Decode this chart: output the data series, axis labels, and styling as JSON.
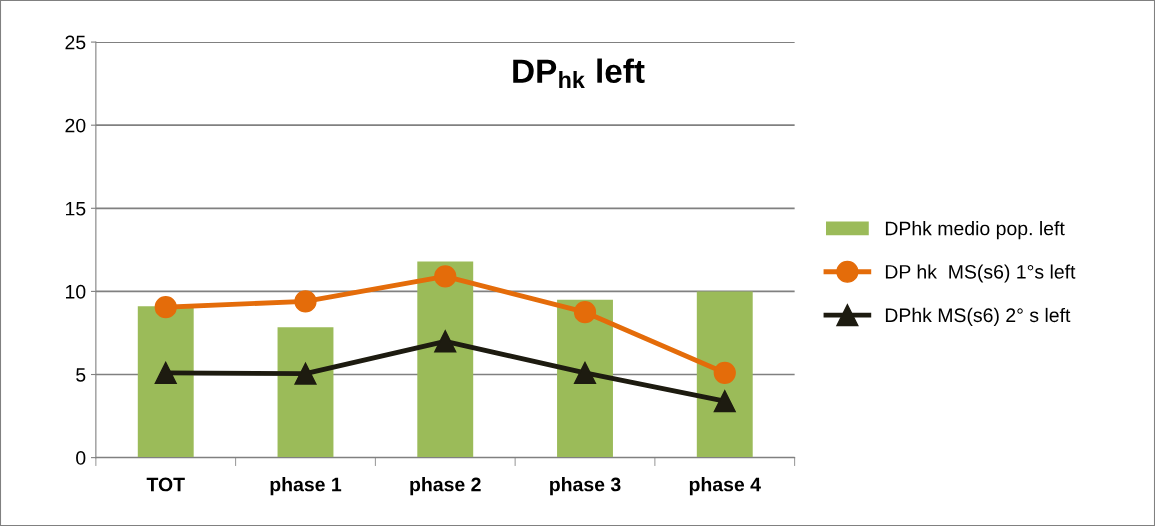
{
  "chart_data": {
    "type": "bar",
    "title": "DP$_{hk}$ left",
    "categories": [
      "TOT",
      "phase 1",
      "phase 2",
      "phase 3",
      "phase 4"
    ],
    "series": [
      {
        "name": "DPhk medio pop. left",
        "color": "#9bbb59",
        "values": [
          9.1,
          7.85,
          11.8,
          9.5,
          10.0
        ]
      },
      {
        "name": "DP hk  MS(s6) 1°s left",
        "type": "line",
        "color": "#e46c0a",
        "marker": "circle",
        "values": [
          9.05,
          9.4,
          10.9,
          8.75,
          5.1
        ]
      },
      {
        "name": "DPhk MS(s6) 2° s left",
        "type": "line",
        "color": "#1d1b10",
        "marker": "triangle",
        "values": [
          5.1,
          5.05,
          7.0,
          5.1,
          3.4
        ]
      }
    ],
    "ylim": [
      0,
      25
    ],
    "yticks": [
      0,
      5,
      10,
      15,
      20,
      25
    ],
    "grid": "y",
    "legend": "right"
  }
}
